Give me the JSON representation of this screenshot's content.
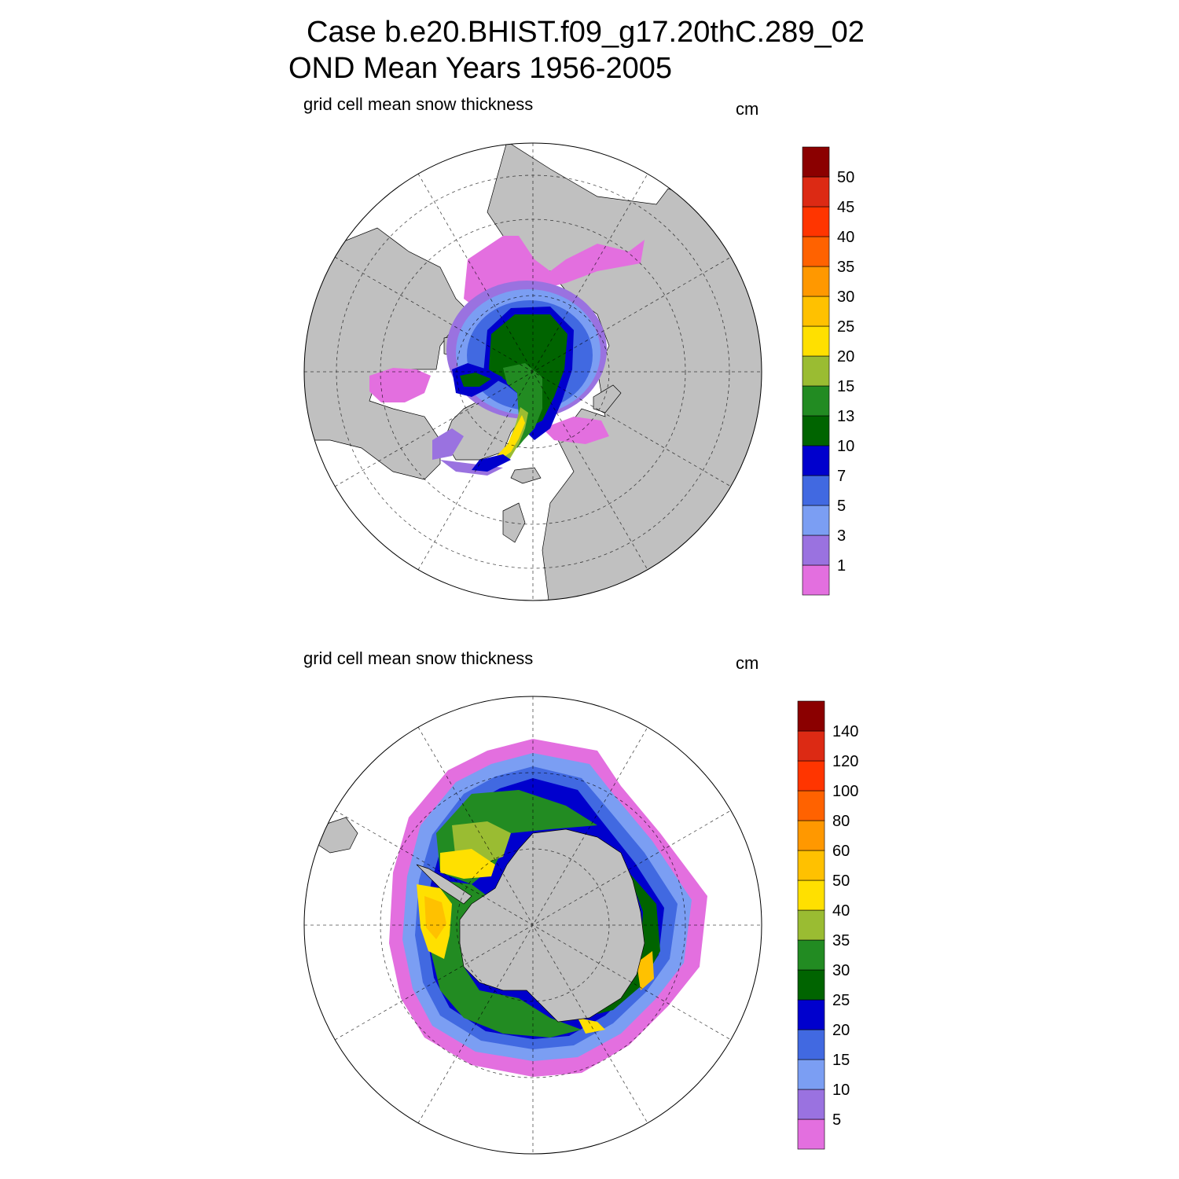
{
  "title_line1": "Case b.e20.BHIST.f09_g17.20thC.289_02",
  "title_line2": "OND Mean   Years 1956-2005",
  "colors": {
    "land": "#c0c0c0",
    "ocean": "#ffffff",
    "palette": [
      "#e36fdf",
      "#9a72e0",
      "#7b9ef3",
      "#4169e1",
      "#0000cd",
      "#006400",
      "#228b22",
      "#9abc32",
      "#ffe000",
      "#ffc100",
      "#ff9800",
      "#ff6200",
      "#ff3500",
      "#dc2a14",
      "#8b0000"
    ]
  },
  "north_panel": {
    "subtitle": "grid cell mean snow thickness",
    "unit": "cm",
    "colorbar_labels": [
      "1",
      "3",
      "5",
      "7",
      "10",
      "13",
      "15",
      "20",
      "25",
      "30",
      "35",
      "40",
      "45",
      "50"
    ]
  },
  "south_panel": {
    "subtitle": "grid cell mean snow thickness",
    "unit": "cm",
    "colorbar_labels": [
      "5",
      "10",
      "15",
      "20",
      "25",
      "30",
      "35",
      "40",
      "50",
      "60",
      "80",
      "100",
      "120",
      "140"
    ]
  }
}
